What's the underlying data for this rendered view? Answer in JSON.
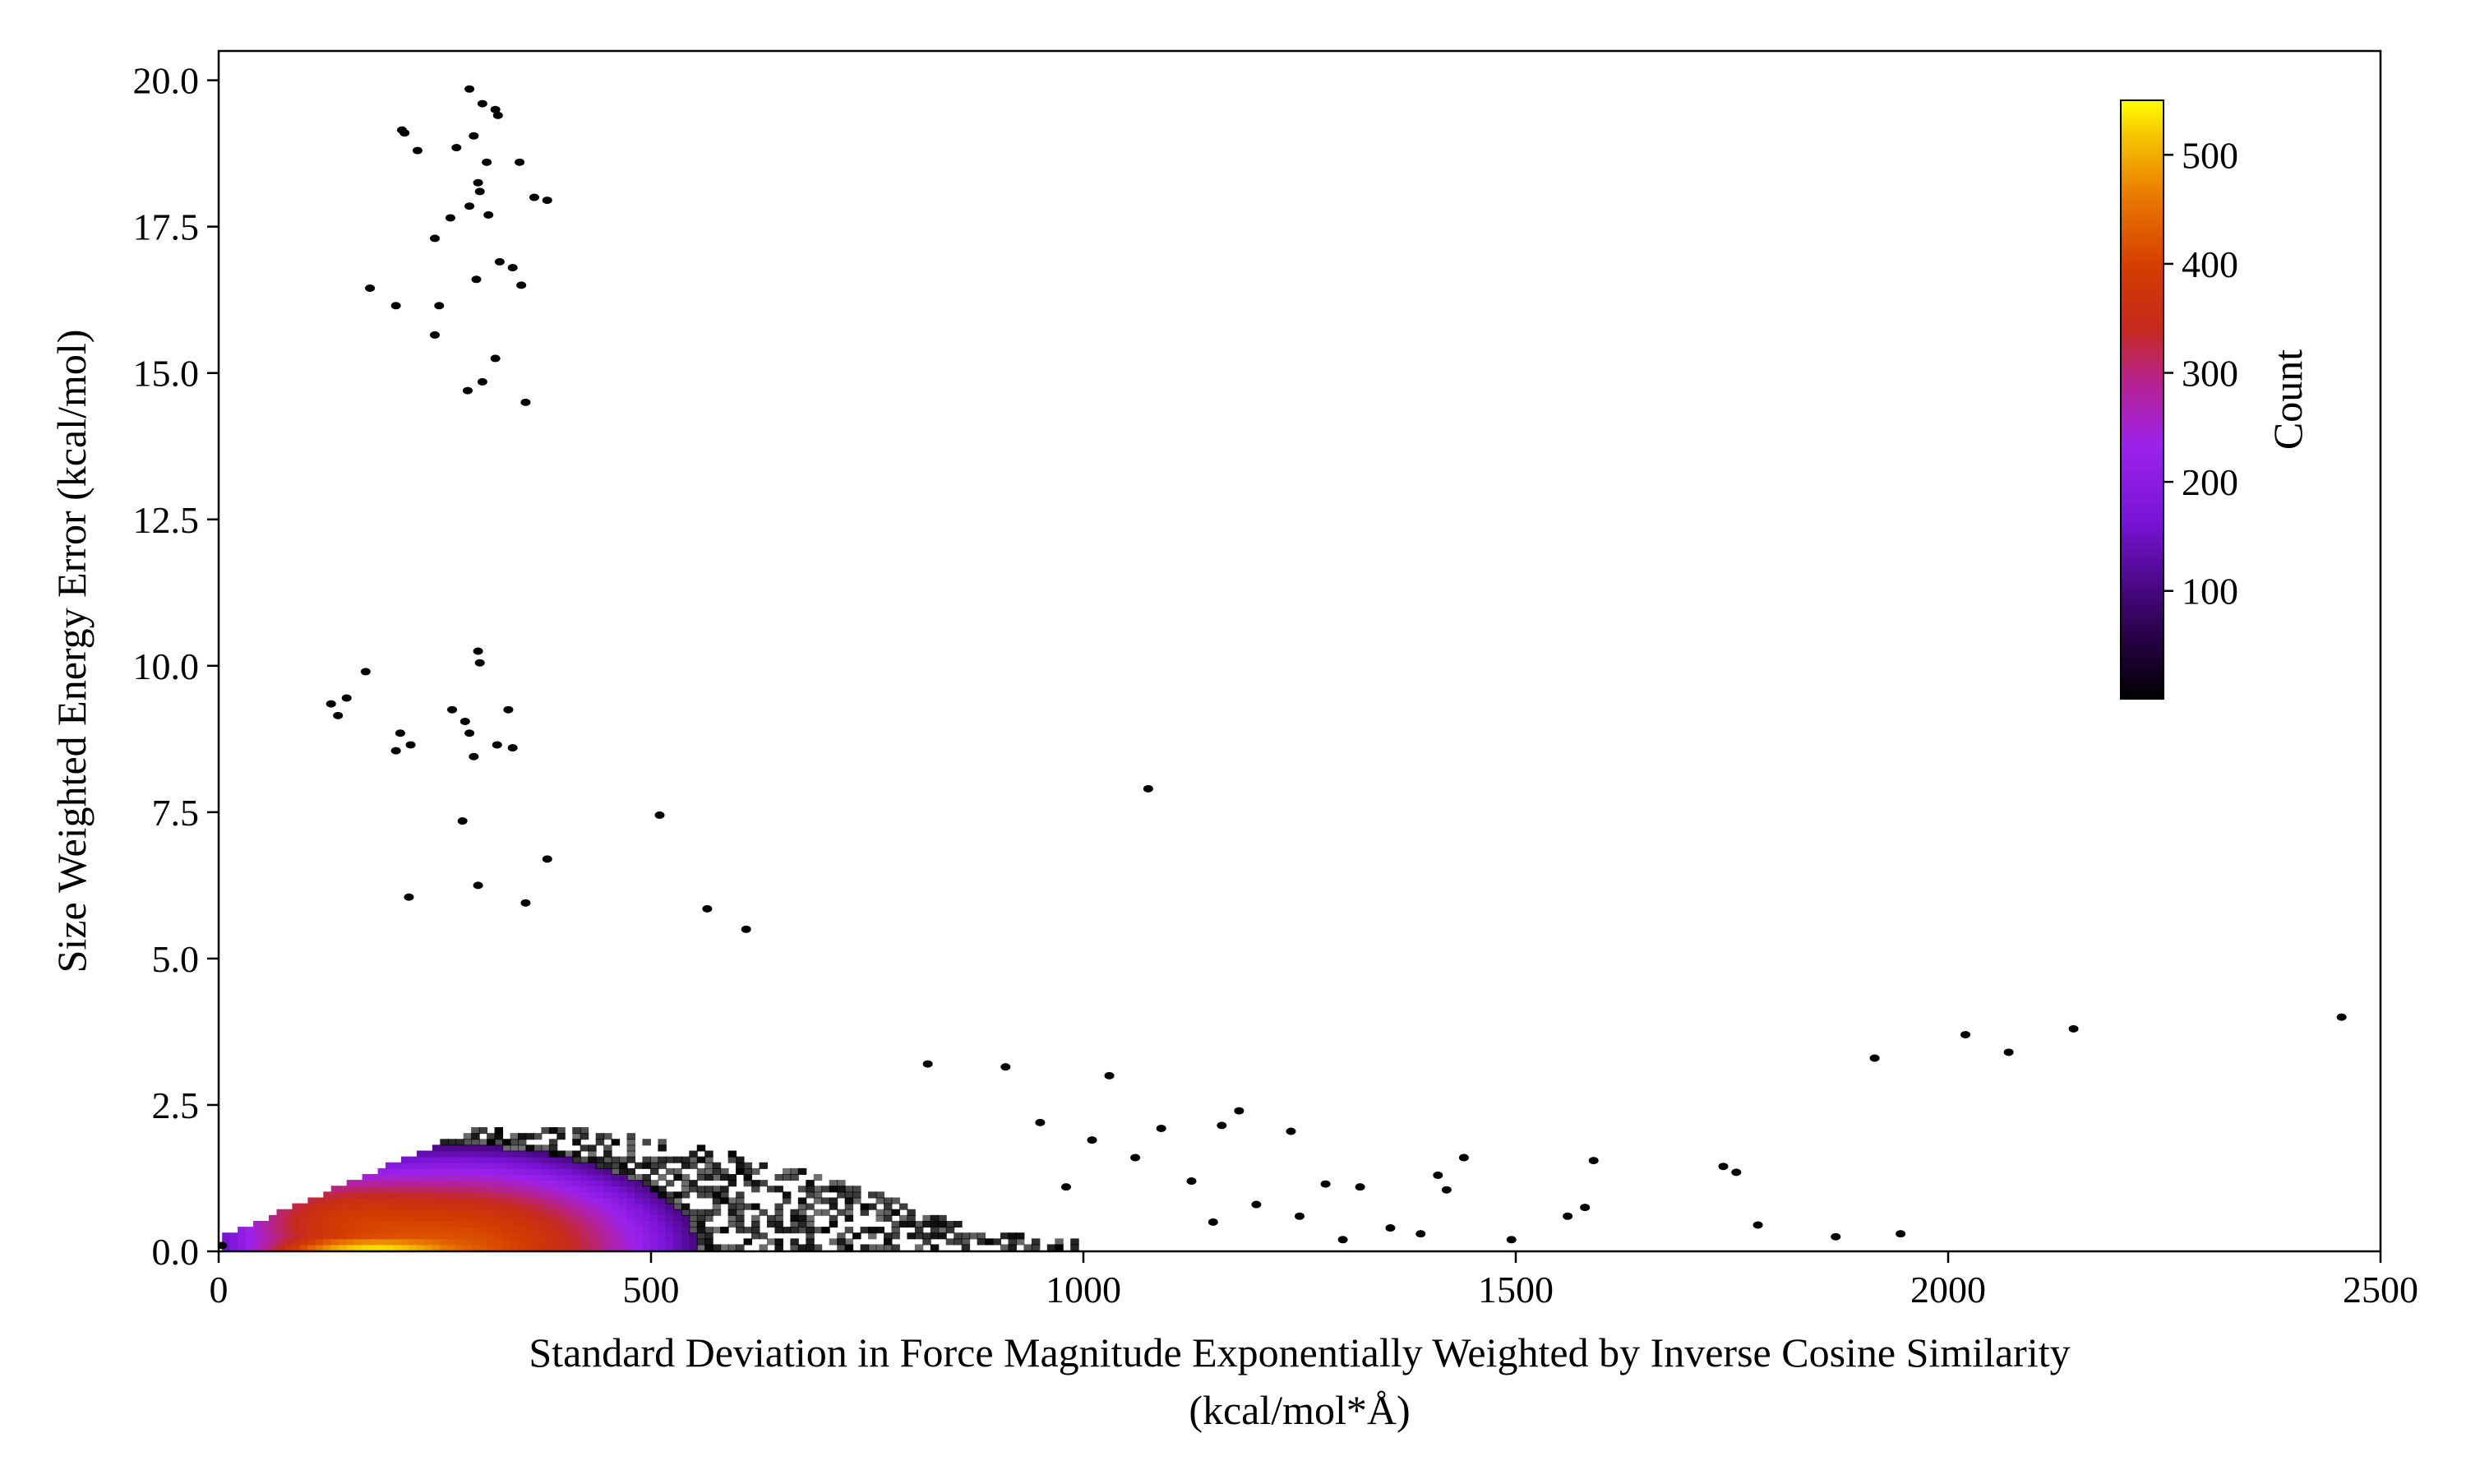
{
  "chart_data": {
    "type": "heatmap",
    "subtype": "hexbin",
    "title": "",
    "xlabel_line1": "Standard Deviation in Force Magnitude Exponentially Weighted by Inverse Cosine Similarity",
    "xlabel_line2": "(kcal/mol*Å)",
    "ylabel": "Size Weighted Energy Error (kcal/mol)",
    "xlim": [
      0,
      2500
    ],
    "ylim": [
      0,
      20.5
    ],
    "x_ticks": [
      0,
      500,
      1000,
      1500,
      2000,
      2500
    ],
    "x_tick_labels": [
      "0",
      "500",
      "1000",
      "1500",
      "2000",
      "2500"
    ],
    "y_ticks": [
      0,
      2.5,
      5,
      7.5,
      10,
      12.5,
      15,
      17.5,
      20
    ],
    "y_tick_labels": [
      "0.0",
      "2.5",
      "5.0",
      "7.5",
      "10.0",
      "12.5",
      "15.0",
      "17.5",
      "20.0"
    ],
    "grid": false,
    "colorbar": {
      "label": "Count",
      "colormap": "gnuplot",
      "range": [
        1,
        550
      ],
      "ticks": [
        100,
        200,
        300,
        400,
        500
      ],
      "tick_labels": [
        "100",
        "200",
        "300",
        "400",
        "500"
      ],
      "placement": "inside top-right"
    },
    "density_core": {
      "description_values": "dense region near x 50-450, y 0-1.5; peak counts ~550 near x 150-220, y 0-0.3",
      "peak": {
        "x": 180,
        "y": 0.1,
        "count": 550
      }
    },
    "outlier_points": [
      [
        290,
        19.85
      ],
      [
        305,
        19.6
      ],
      [
        320,
        19.5
      ],
      [
        323,
        19.4
      ],
      [
        212,
        19.15
      ],
      [
        215,
        19.1
      ],
      [
        295,
        19.05
      ],
      [
        230,
        18.8
      ],
      [
        275,
        18.85
      ],
      [
        310,
        18.6
      ],
      [
        348,
        18.6
      ],
      [
        300,
        18.25
      ],
      [
        302,
        18.1
      ],
      [
        365,
        18.0
      ],
      [
        380,
        17.95
      ],
      [
        290,
        17.85
      ],
      [
        268,
        17.65
      ],
      [
        312,
        17.7
      ],
      [
        250,
        17.3
      ],
      [
        325,
        16.9
      ],
      [
        340,
        16.8
      ],
      [
        298,
        16.6
      ],
      [
        350,
        16.5
      ],
      [
        175,
        16.45
      ],
      [
        205,
        16.15
      ],
      [
        255,
        16.15
      ],
      [
        250,
        15.65
      ],
      [
        320,
        15.25
      ],
      [
        305,
        14.85
      ],
      [
        288,
        14.7
      ],
      [
        355,
        14.5
      ],
      [
        300,
        10.25
      ],
      [
        302,
        10.05
      ],
      [
        170,
        9.9
      ],
      [
        130,
        9.35
      ],
      [
        148,
        9.45
      ],
      [
        138,
        9.15
      ],
      [
        335,
        9.25
      ],
      [
        270,
        9.25
      ],
      [
        285,
        9.05
      ],
      [
        290,
        8.85
      ],
      [
        210,
        8.85
      ],
      [
        222,
        8.65
      ],
      [
        205,
        8.55
      ],
      [
        322,
        8.65
      ],
      [
        340,
        8.6
      ],
      [
        295,
        8.45
      ],
      [
        282,
        7.35
      ],
      [
        1075,
        7.9
      ],
      [
        510,
        7.45
      ],
      [
        380,
        6.7
      ],
      [
        300,
        6.25
      ],
      [
        220,
        6.05
      ],
      [
        355,
        5.95
      ],
      [
        565,
        5.85
      ],
      [
        610,
        5.5
      ],
      [
        4,
        0.1
      ],
      [
        2455,
        4.0
      ],
      [
        2145,
        3.8
      ],
      [
        2020,
        3.7
      ],
      [
        2070,
        3.4
      ],
      [
        1915,
        3.3
      ],
      [
        1180,
        2.4
      ],
      [
        1160,
        2.15
      ],
      [
        1090,
        2.1
      ],
      [
        1240,
        2.05
      ],
      [
        1030,
        3.0
      ],
      [
        950,
        2.2
      ],
      [
        910,
        3.15
      ],
      [
        820,
        3.2
      ],
      [
        1440,
        1.6
      ],
      [
        1590,
        1.55
      ],
      [
        1740,
        1.45
      ],
      [
        1755,
        1.35
      ],
      [
        1410,
        1.3
      ],
      [
        1280,
        1.15
      ],
      [
        1320,
        1.1
      ],
      [
        1420,
        1.05
      ],
      [
        1780,
        0.45
      ],
      [
        1870,
        0.25
      ],
      [
        1945,
        0.3
      ],
      [
        1495,
        0.2
      ],
      [
        1560,
        0.6
      ],
      [
        1580,
        0.75
      ],
      [
        1300,
        0.2
      ],
      [
        1355,
        0.4
      ],
      [
        1390,
        0.3
      ],
      [
        1250,
        0.6
      ],
      [
        1200,
        0.8
      ],
      [
        1150,
        0.5
      ],
      [
        1125,
        1.2
      ],
      [
        1060,
        1.6
      ],
      [
        1010,
        1.9
      ],
      [
        980,
        1.1
      ]
    ]
  }
}
